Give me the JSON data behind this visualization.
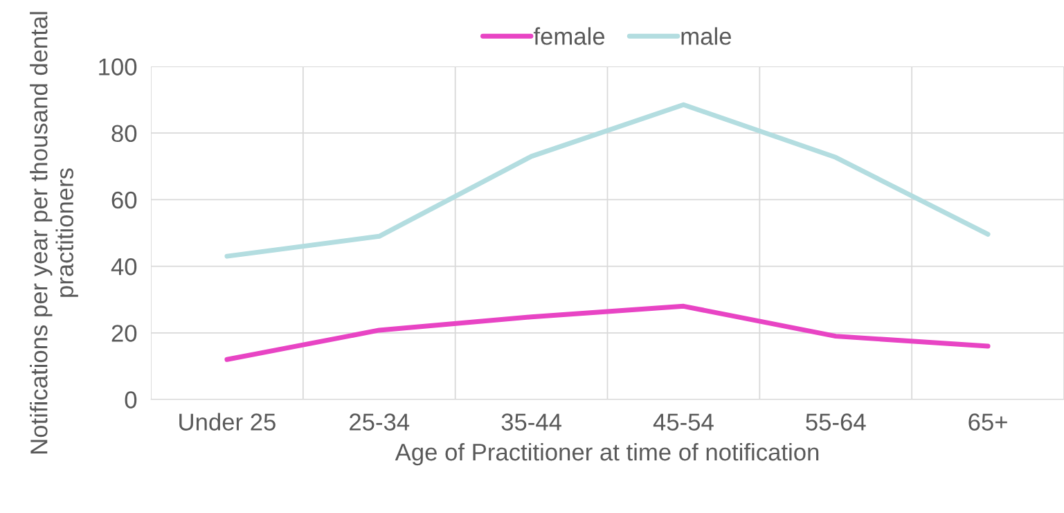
{
  "chart_data": {
    "type": "line",
    "xlabel": "Age of Practitioner at time of notification",
    "ylabel": "Notifications per year per thousand dental practitioners",
    "categories": [
      "Under 25",
      "25-34",
      "35-44",
      "45-54",
      "55-64",
      "65+"
    ],
    "series": [
      {
        "name": "female",
        "color": "#e844c4",
        "values": [
          12,
          20.8,
          24.8,
          28,
          19,
          16
        ]
      },
      {
        "name": "male",
        "color": "#b3dde0",
        "values": [
          43,
          49,
          73,
          88.5,
          72.7,
          49.6
        ]
      }
    ],
    "ylim": [
      0,
      100
    ],
    "yticks": [
      0,
      20,
      40,
      60,
      80,
      100
    ],
    "grid": true,
    "legend": "top",
    "marker": "none",
    "line_style": "solid"
  }
}
